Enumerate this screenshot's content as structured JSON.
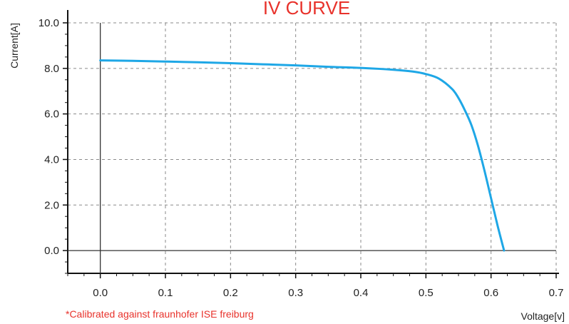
{
  "chart_data": {
    "type": "line",
    "title": "IV CURVE",
    "xlabel": "Voltage[v]",
    "ylabel": "Current[A]",
    "footnote": "*Calibrated against fraunhofer ISE freiburg",
    "xlim": [
      -0.05,
      0.7
    ],
    "ylim": [
      -1.0,
      10.0
    ],
    "x_ticks": [
      0.0,
      0.1,
      0.2,
      0.3,
      0.4,
      0.5,
      0.6,
      0.7
    ],
    "x_tick_labels": [
      "0.0",
      "0.1",
      "0.2",
      "0.3",
      "0.4",
      "0.5",
      "0.6",
      "0.7"
    ],
    "y_ticks": [
      0.0,
      2.0,
      4.0,
      6.0,
      8.0,
      10.0
    ],
    "y_tick_labels": [
      "0.0",
      "2.0",
      "4.0",
      "6.0",
      "8.0",
      "10.0"
    ],
    "grid": true,
    "series": [
      {
        "color": "#1ea7e6",
        "x": [
          0.0,
          0.05,
          0.1,
          0.15,
          0.2,
          0.25,
          0.3,
          0.35,
          0.4,
          0.45,
          0.48,
          0.5,
          0.52,
          0.54,
          0.55,
          0.56,
          0.57,
          0.58,
          0.59,
          0.6,
          0.61,
          0.62
        ],
        "y": [
          8.35,
          8.33,
          8.3,
          8.27,
          8.23,
          8.18,
          8.13,
          8.07,
          8.02,
          7.94,
          7.86,
          7.75,
          7.55,
          7.1,
          6.7,
          6.15,
          5.5,
          4.6,
          3.5,
          2.3,
          1.1,
          0.0
        ]
      }
    ],
    "colors": {
      "title": "#e8322b",
      "footnote": "#e8322b",
      "curve": "#1ea7e6"
    }
  }
}
